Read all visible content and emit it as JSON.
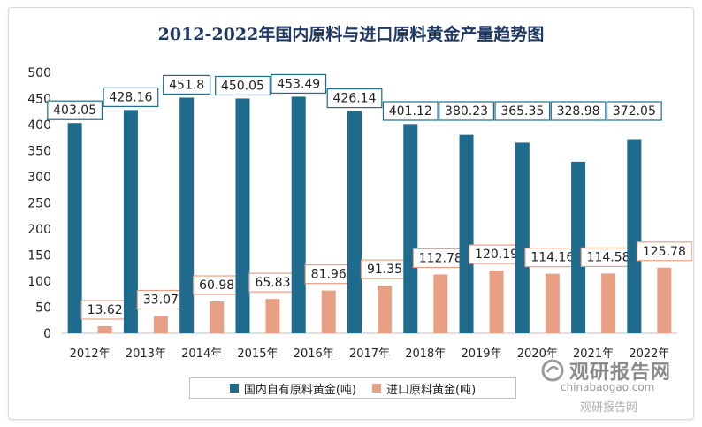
{
  "chart_data": {
    "type": "bar",
    "title": "2012-2022年国内原料与进口原料黄金产量趋势图",
    "categories": [
      "2012年",
      "2013年",
      "2014年",
      "2015年",
      "2016年",
      "2017年",
      "2018年",
      "2019年",
      "2020年",
      "2021年",
      "2022年"
    ],
    "series": [
      {
        "name": "国内自有原料黄金(吨)",
        "color": "#1f6b8e",
        "values": [
          403.05,
          428.16,
          451.8,
          450.05,
          453.49,
          426.14,
          401.12,
          380.23,
          365.35,
          328.98,
          372.05
        ]
      },
      {
        "name": "进口原料黄金(吨)",
        "color": "#e8a084",
        "values": [
          13.62,
          33.07,
          60.98,
          65.83,
          81.96,
          91.35,
          112.78,
          120.19,
          114.16,
          114.58,
          125.78
        ]
      }
    ],
    "data_labels": [
      [
        "403.05",
        "428.16",
        "451.8",
        "450.05",
        "453.49",
        "426.14",
        "401.12",
        "380.23",
        "365.35",
        "328.98",
        "372.05"
      ],
      [
        "13.62",
        "33.07",
        "60.98",
        "65.83",
        "81.96",
        "91.35",
        "112.78",
        "120.19",
        "114.16",
        "114.58",
        "125.78"
      ]
    ],
    "ylim": [
      0,
      500
    ],
    "yticks": [
      0,
      50,
      100,
      150,
      200,
      250,
      300,
      350,
      400,
      450,
      500
    ],
    "legend_position": "bottom",
    "grid": false
  },
  "watermark": {
    "brand": "观研报告网",
    "url": "chinabaogao.com",
    "caption": "观研报告网"
  }
}
